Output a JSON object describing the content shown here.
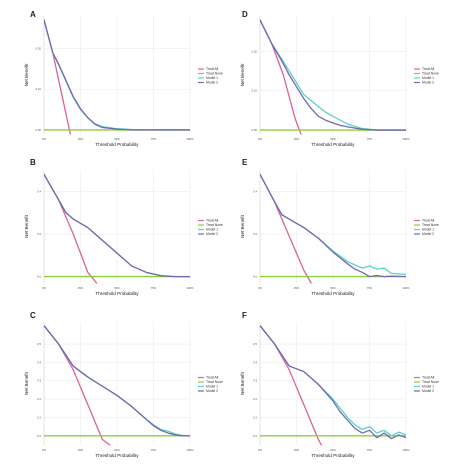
{
  "legend_labels": [
    "Treat All",
    "Treat None",
    "Model 1",
    "Model 2"
  ],
  "colors": {
    "treat_all": "#d8639a",
    "treat_none": "#8ccf3c",
    "model1": "#5ad2c8",
    "model2": "#7468b0"
  },
  "chart_data": [
    {
      "panel": "A",
      "type": "line",
      "xlabel": "Threshold Probability",
      "ylabel": "Net Benefit",
      "xlim": [
        0,
        1
      ],
      "ylim": [
        -0.01,
        0.28
      ],
      "xticks": [
        "0%",
        "25%",
        "50%",
        "75%",
        "100%"
      ],
      "yticks": [
        0,
        0.1,
        0.2
      ],
      "yticklabels": [
        "0.00",
        "0.10",
        "0.20"
      ],
      "legend": "right",
      "series": [
        {
          "name": "Treat All",
          "x": [
            0,
            0.06,
            0.12,
            0.18
          ],
          "y": [
            0.27,
            0.19,
            0.09,
            -0.01
          ]
        },
        {
          "name": "Treat None",
          "x": [
            0,
            1
          ],
          "y": [
            0,
            0
          ]
        },
        {
          "name": "Model 1",
          "x": [
            0,
            0.06,
            0.1,
            0.15,
            0.2,
            0.25,
            0.3,
            0.35,
            0.4,
            0.5,
            0.6,
            0.75,
            0.9,
            1.0
          ],
          "y": [
            0.27,
            0.19,
            0.16,
            0.12,
            0.08,
            0.05,
            0.03,
            0.015,
            0.008,
            0.003,
            0.001,
            0.0,
            0.0,
            0.0
          ]
        },
        {
          "name": "Model 2",
          "x": [
            0,
            0.06,
            0.1,
            0.15,
            0.2,
            0.25,
            0.3,
            0.35,
            0.4,
            0.5,
            0.6,
            0.75,
            0.9,
            1.0
          ],
          "y": [
            0.27,
            0.19,
            0.162,
            0.122,
            0.082,
            0.052,
            0.03,
            0.014,
            0.006,
            0.002,
            0.0,
            0.0,
            0.0,
            0.0
          ]
        }
      ]
    },
    {
      "panel": "D",
      "type": "line",
      "xlabel": "Threshold Probability",
      "ylabel": "Net Benefit",
      "xlim": [
        0,
        1
      ],
      "ylim": [
        -0.01,
        0.29
      ],
      "xticks": [
        "0%",
        "25%",
        "50%",
        "75%",
        "100%"
      ],
      "yticks": [
        0,
        0.1,
        0.2
      ],
      "yticklabels": [
        "0.00",
        "0.10",
        "0.20"
      ],
      "legend": "right",
      "series": [
        {
          "name": "Treat All",
          "x": [
            0,
            0.08,
            0.16,
            0.24,
            0.28
          ],
          "y": [
            0.28,
            0.22,
            0.14,
            0.03,
            -0.01
          ]
        },
        {
          "name": "Treat None",
          "x": [
            0,
            1
          ],
          "y": [
            0,
            0
          ]
        },
        {
          "name": "Model 1",
          "x": [
            0,
            0.08,
            0.15,
            0.2,
            0.25,
            0.3,
            0.35,
            0.4,
            0.45,
            0.5,
            0.55,
            0.6,
            0.7,
            0.8,
            1.0
          ],
          "y": [
            0.28,
            0.22,
            0.18,
            0.15,
            0.12,
            0.09,
            0.075,
            0.06,
            0.045,
            0.035,
            0.025,
            0.015,
            0.004,
            0.0,
            0.0
          ]
        },
        {
          "name": "Model 2",
          "x": [
            0,
            0.08,
            0.15,
            0.2,
            0.25,
            0.3,
            0.35,
            0.4,
            0.45,
            0.5,
            0.55,
            0.6,
            0.7,
            0.8,
            1.0
          ],
          "y": [
            0.28,
            0.22,
            0.175,
            0.14,
            0.11,
            0.08,
            0.055,
            0.035,
            0.025,
            0.018,
            0.012,
            0.008,
            0.002,
            0.0,
            0.0
          ]
        }
      ]
    },
    {
      "panel": "B",
      "type": "line",
      "xlabel": "Threshold Probability",
      "ylabel": "Net Benefit",
      "xlim": [
        0,
        1
      ],
      "ylim": [
        -0.03,
        0.5
      ],
      "xticks": [
        "0%",
        "25%",
        "50%",
        "75%",
        "100%"
      ],
      "yticks": [
        0,
        0.2,
        0.4
      ],
      "yticklabels": [
        "0.0",
        "0.2",
        "0.4"
      ],
      "legend": "right",
      "series": [
        {
          "name": "Treat All",
          "x": [
            0,
            0.1,
            0.2,
            0.3,
            0.36
          ],
          "y": [
            0.48,
            0.36,
            0.2,
            0.02,
            -0.03
          ]
        },
        {
          "name": "Treat None",
          "x": [
            0,
            1
          ],
          "y": [
            0,
            0
          ]
        },
        {
          "name": "Model 1",
          "x": [
            0,
            0.1,
            0.15,
            0.2,
            0.25,
            0.3,
            0.35,
            0.4,
            0.45,
            0.5,
            0.55,
            0.6,
            0.7,
            0.8,
            0.9,
            1.0
          ],
          "y": [
            0.48,
            0.36,
            0.3,
            0.27,
            0.25,
            0.23,
            0.2,
            0.17,
            0.14,
            0.11,
            0.08,
            0.05,
            0.02,
            0.005,
            0.0,
            0.0
          ]
        },
        {
          "name": "Model 2",
          "x": [
            0,
            0.1,
            0.15,
            0.2,
            0.25,
            0.3,
            0.35,
            0.4,
            0.45,
            0.5,
            0.55,
            0.6,
            0.7,
            0.8,
            0.9,
            1.0
          ],
          "y": [
            0.48,
            0.36,
            0.3,
            0.27,
            0.25,
            0.23,
            0.2,
            0.17,
            0.14,
            0.11,
            0.08,
            0.05,
            0.02,
            0.004,
            0.0,
            0.0
          ]
        }
      ]
    },
    {
      "panel": "E",
      "type": "line",
      "xlabel": "Threshold Probability",
      "ylabel": "Net Benefit",
      "xlim": [
        0,
        1
      ],
      "ylim": [
        -0.03,
        0.5
      ],
      "xticks": [
        "0%",
        "25%",
        "50%",
        "75%",
        "100%"
      ],
      "yticks": [
        0,
        0.2,
        0.4
      ],
      "yticklabels": [
        "0.0",
        "0.2",
        "0.4"
      ],
      "legend": "right",
      "series": [
        {
          "name": "Treat All",
          "x": [
            0,
            0.1,
            0.2,
            0.3,
            0.35
          ],
          "y": [
            0.48,
            0.35,
            0.19,
            0.03,
            -0.03
          ]
        },
        {
          "name": "Treat None",
          "x": [
            0,
            1
          ],
          "y": [
            0,
            0
          ]
        },
        {
          "name": "Model 1",
          "x": [
            0,
            0.1,
            0.15,
            0.2,
            0.3,
            0.4,
            0.5,
            0.6,
            0.65,
            0.7,
            0.75,
            0.8,
            0.85,
            0.9,
            1.0
          ],
          "y": [
            0.48,
            0.35,
            0.29,
            0.27,
            0.23,
            0.18,
            0.12,
            0.07,
            0.055,
            0.04,
            0.05,
            0.035,
            0.04,
            0.015,
            0.01
          ]
        },
        {
          "name": "Model 2",
          "x": [
            0,
            0.1,
            0.15,
            0.2,
            0.3,
            0.4,
            0.5,
            0.6,
            0.65,
            0.7,
            0.75,
            0.8,
            0.85,
            0.9,
            1.0
          ],
          "y": [
            0.48,
            0.35,
            0.29,
            0.27,
            0.23,
            0.18,
            0.115,
            0.06,
            0.035,
            0.02,
            0.0,
            0.005,
            0.0,
            0.002,
            0.0
          ]
        }
      ]
    },
    {
      "panel": "C",
      "type": "line",
      "xlabel": "Threshold Probability",
      "ylabel": "Net Benefit",
      "xlim": [
        0,
        1
      ],
      "ylim": [
        -0.05,
        0.62
      ],
      "xticks": [
        "0%",
        "25%",
        "50%",
        "75%",
        "100%"
      ],
      "yticks": [
        0,
        0.1,
        0.2,
        0.3,
        0.4,
        0.5
      ],
      "yticklabels": [
        "0.0",
        "0.1",
        "0.2",
        "0.3",
        "0.4",
        "0.5"
      ],
      "legend": "right",
      "series": [
        {
          "name": "Treat All",
          "x": [
            0,
            0.1,
            0.2,
            0.3,
            0.4,
            0.45
          ],
          "y": [
            0.6,
            0.5,
            0.36,
            0.17,
            -0.02,
            -0.05
          ]
        },
        {
          "name": "Treat None",
          "x": [
            0,
            1
          ],
          "y": [
            0,
            0
          ]
        },
        {
          "name": "Model 1",
          "x": [
            0,
            0.1,
            0.2,
            0.3,
            0.4,
            0.5,
            0.6,
            0.7,
            0.75,
            0.8,
            0.85,
            0.9,
            0.95,
            1.0
          ],
          "y": [
            0.6,
            0.5,
            0.38,
            0.32,
            0.27,
            0.22,
            0.16,
            0.09,
            0.06,
            0.035,
            0.025,
            0.01,
            0.002,
            0.0
          ]
        },
        {
          "name": "Model 2",
          "x": [
            0,
            0.1,
            0.2,
            0.3,
            0.4,
            0.5,
            0.6,
            0.7,
            0.75,
            0.8,
            0.85,
            0.9,
            0.95,
            1.0
          ],
          "y": [
            0.6,
            0.5,
            0.38,
            0.32,
            0.27,
            0.22,
            0.16,
            0.09,
            0.055,
            0.03,
            0.015,
            0.005,
            0.0,
            0.0
          ]
        }
      ]
    },
    {
      "panel": "F",
      "type": "line",
      "xlabel": "Threshold Probability",
      "ylabel": "Net Benefit",
      "xlim": [
        0,
        1
      ],
      "ylim": [
        -0.05,
        0.62
      ],
      "xticks": [
        "0%",
        "25%",
        "50%",
        "75%",
        "100%"
      ],
      "yticks": [
        0,
        0.1,
        0.2,
        0.3,
        0.4,
        0.5
      ],
      "yticklabels": [
        "0.0",
        "0.1",
        "0.2",
        "0.3",
        "0.4",
        "0.5"
      ],
      "legend": "right",
      "series": [
        {
          "name": "Treat All",
          "x": [
            0,
            0.1,
            0.2,
            0.3,
            0.4,
            0.42
          ],
          "y": [
            0.6,
            0.5,
            0.36,
            0.17,
            -0.02,
            -0.05
          ]
        },
        {
          "name": "Treat None",
          "x": [
            0,
            1
          ],
          "y": [
            0,
            0
          ]
        },
        {
          "name": "Model 1",
          "x": [
            0,
            0.1,
            0.2,
            0.3,
            0.4,
            0.5,
            0.55,
            0.6,
            0.65,
            0.7,
            0.75,
            0.8,
            0.85,
            0.9,
            0.95,
            1.0
          ],
          "y": [
            0.6,
            0.5,
            0.38,
            0.35,
            0.28,
            0.2,
            0.15,
            0.1,
            0.06,
            0.035,
            0.05,
            0.015,
            0.03,
            0.0,
            0.02,
            0.005
          ]
        },
        {
          "name": "Model 2",
          "x": [
            0,
            0.1,
            0.2,
            0.3,
            0.4,
            0.5,
            0.55,
            0.6,
            0.65,
            0.7,
            0.75,
            0.8,
            0.85,
            0.9,
            0.95,
            1.0
          ],
          "y": [
            0.6,
            0.5,
            0.38,
            0.35,
            0.28,
            0.19,
            0.13,
            0.085,
            0.04,
            0.015,
            0.03,
            -0.01,
            0.015,
            -0.015,
            0.005,
            -0.01
          ]
        }
      ]
    }
  ]
}
